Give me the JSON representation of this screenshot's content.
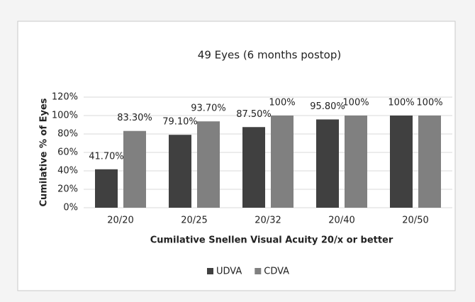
{
  "chart_data": {
    "type": "bar",
    "title": "49 Eyes (6 months postop)",
    "y_label": "Cumilative % of Eyes",
    "x_label": "Cumilative Snellen Visual Acuity 20/x or better",
    "categories": [
      "20/20",
      "20/25",
      "20/32",
      "20/40",
      "20/50"
    ],
    "series": [
      {
        "name": "UDVA",
        "color": "#404040",
        "values": [
          41.7,
          79.1,
          87.5,
          95.8,
          100
        ],
        "value_labels": [
          "41.70%",
          "79.10%",
          "87.50%",
          "95.80%",
          "100%"
        ]
      },
      {
        "name": "CDVA",
        "color": "#808080",
        "values": [
          83.3,
          93.7,
          100,
          100,
          100
        ],
        "value_labels": [
          "83.30%",
          "93.70%",
          "100%",
          "100%",
          "100%"
        ]
      }
    ],
    "ylim": [
      0,
      120
    ],
    "yticks": [
      {
        "value": 0,
        "label": "0%"
      },
      {
        "value": 20,
        "label": "20%"
      },
      {
        "value": 40,
        "label": "40%"
      },
      {
        "value": 60,
        "label": "60%"
      },
      {
        "value": 80,
        "label": "80%"
      },
      {
        "value": 100,
        "label": "100%"
      },
      {
        "value": 120,
        "label": "120%"
      }
    ],
    "grid": true,
    "legend": "bottom"
  }
}
